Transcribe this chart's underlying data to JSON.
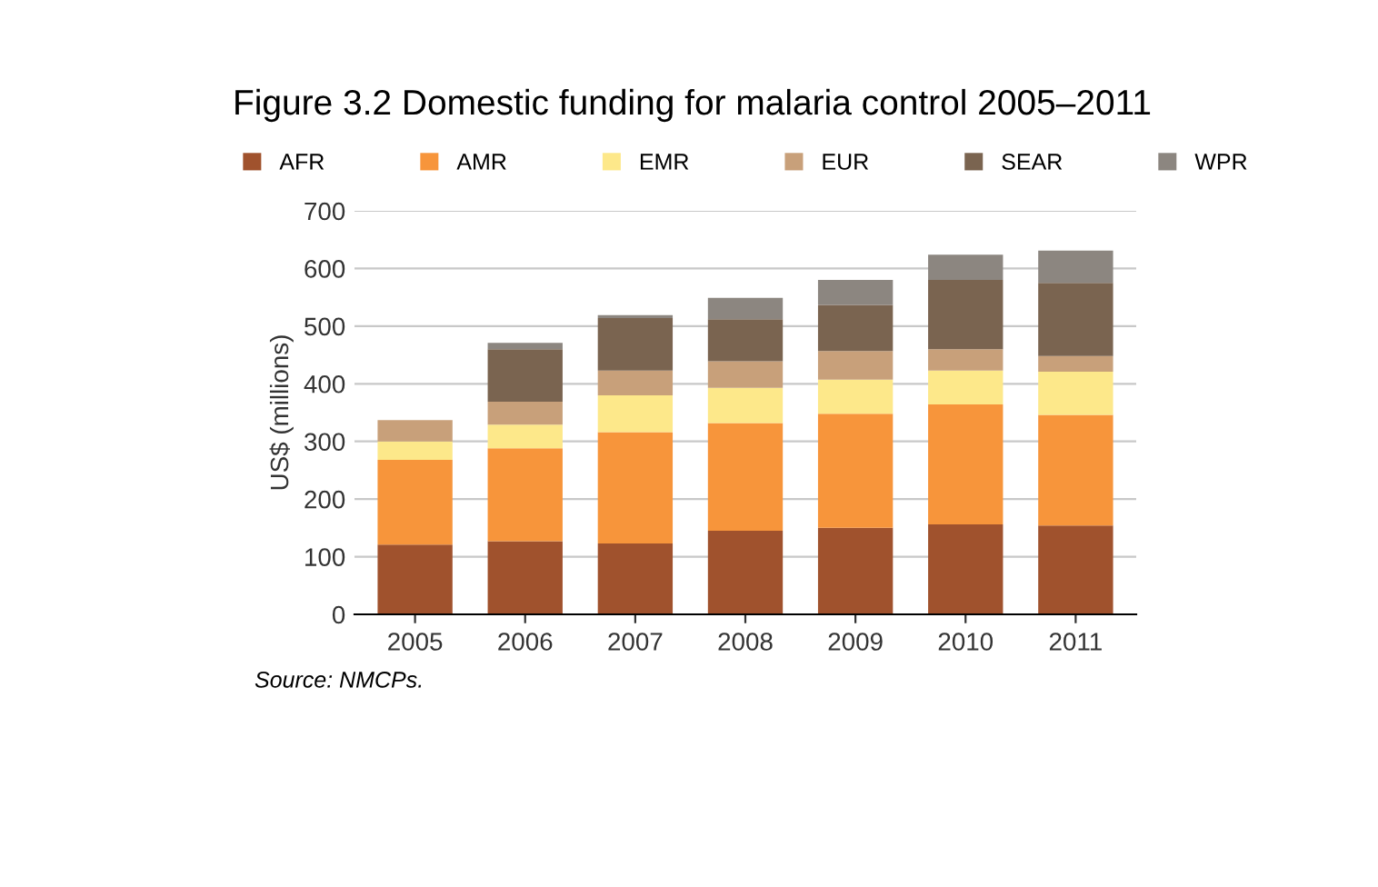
{
  "chart_data": {
    "type": "bar",
    "stacked": true,
    "title": "Figure 3.2 Domestic funding for malaria control 2005–2011",
    "ylabel": "US$ (millions)",
    "categories": [
      "2005",
      "2006",
      "2007",
      "2008",
      "2009",
      "2010",
      "2011"
    ],
    "series": [
      {
        "name": "AFR",
        "color": "#a0522d",
        "values": [
          121,
          127,
          123,
          145,
          150,
          156,
          154
        ]
      },
      {
        "name": "AMR",
        "color": "#f7953b",
        "values": [
          147,
          161,
          193,
          187,
          198,
          208,
          192
        ]
      },
      {
        "name": "EMR",
        "color": "#fde88a",
        "values": [
          32,
          41,
          64,
          61,
          59,
          59,
          75
        ]
      },
      {
        "name": "EUR",
        "color": "#c8a07a",
        "values": [
          37,
          40,
          43,
          46,
          50,
          37,
          27
        ]
      },
      {
        "name": "SEAR",
        "color": "#7a6450",
        "values": [
          null,
          91,
          91,
          73,
          80,
          120,
          127
        ]
      },
      {
        "name": "WPR",
        "color": "#8c8680",
        "values": [
          null,
          11,
          5,
          37,
          43,
          44,
          56
        ]
      }
    ],
    "ylim": [
      0,
      700
    ],
    "yticks": [
      0,
      100,
      200,
      300,
      400,
      500,
      600,
      700
    ],
    "grid": "y",
    "legend": "top",
    "annotations": [
      "Source: NMCPs."
    ]
  }
}
